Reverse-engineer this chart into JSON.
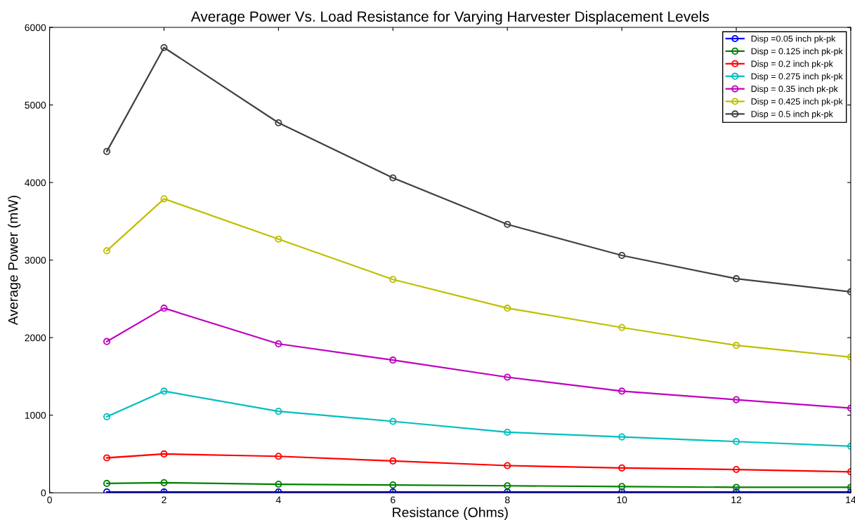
{
  "chart_data": {
    "type": "line",
    "title": "Average Power Vs. Load Resistance for Varying Harvester Displacement Levels",
    "xlabel": "Resistance (Ohms)",
    "ylabel": "Average Power (mW)",
    "x": [
      1,
      2,
      4,
      6,
      8,
      10,
      12,
      14
    ],
    "series": [
      {
        "name": "Disp =0.05 inch pk-pk",
        "color": "#0000ff",
        "values": [
          10,
          10,
          10,
          10,
          10,
          10,
          10,
          10
        ]
      },
      {
        "name": "Disp = 0.125 inch pk-pk",
        "color": "#008000",
        "values": [
          120,
          130,
          110,
          100,
          90,
          80,
          70,
          70
        ]
      },
      {
        "name": "Disp = 0.2 inch pk-pk",
        "color": "#ff0000",
        "values": [
          450,
          500,
          470,
          410,
          350,
          320,
          300,
          270
        ]
      },
      {
        "name": "Disp = 0.275 inch pk-pk",
        "color": "#00bfbf",
        "values": [
          980,
          1310,
          1050,
          920,
          780,
          720,
          660,
          600
        ]
      },
      {
        "name": "Disp = 0.35 inch pk-pk",
        "color": "#bf00bf",
        "values": [
          1950,
          2380,
          1920,
          1710,
          1490,
          1310,
          1200,
          1090
        ]
      },
      {
        "name": "Disp = 0.425 inch pk-pk",
        "color": "#bfbf00",
        "values": [
          3120,
          3790,
          3270,
          2750,
          2380,
          2130,
          1900,
          1750
        ]
      },
      {
        "name": "Disp = 0.5 inch pk-pk",
        "color": "#404040",
        "values": [
          4400,
          5740,
          4770,
          4060,
          3460,
          3060,
          2760,
          2590
        ]
      }
    ],
    "xlim": [
      0,
      14
    ],
    "xticks": [
      0,
      2,
      4,
      6,
      8,
      10,
      12,
      14
    ],
    "ylim": [
      0,
      6000
    ],
    "yticks": [
      0,
      1000,
      2000,
      3000,
      4000,
      5000,
      6000
    ],
    "grid": false,
    "legend": "top right",
    "marker": "circle",
    "line_style": "solid"
  }
}
